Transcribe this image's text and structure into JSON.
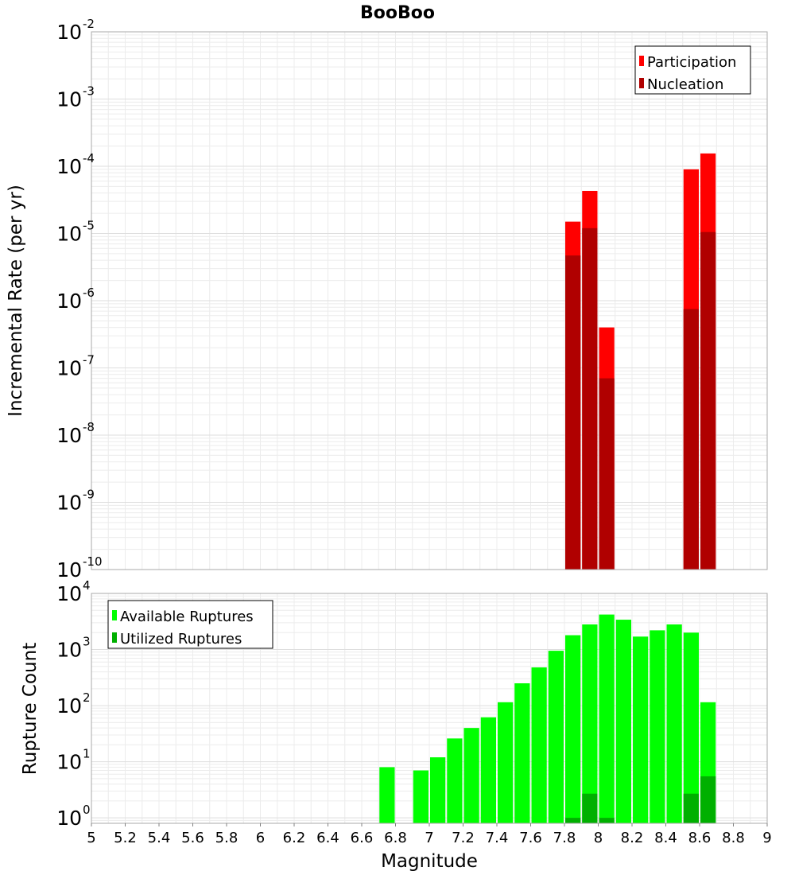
{
  "chart_data": [
    {
      "type": "bar",
      "title": "BooBoo",
      "xlabel": "",
      "ylabel": "Incremental Rate (per yr)",
      "xlim": [
        5,
        9
      ],
      "ylim": [
        1e-10,
        0.01
      ],
      "yscale": "log",
      "y_tick_exponents": [
        "-10",
        "-9",
        "-8",
        "-7",
        "-6",
        "-5",
        "-4",
        "-3",
        "-2"
      ],
      "y_tick_base": "10",
      "bar_width": 0.1,
      "grid": true,
      "legend_position": "top-right",
      "series": [
        {
          "name": "Participation",
          "color": "#ff0000",
          "points": [
            [
              7.85,
              1.5e-05
            ],
            [
              7.95,
              4.3e-05
            ],
            [
              8.05,
              4e-07
            ],
            [
              8.55,
              9e-05
            ],
            [
              8.65,
              0.000155
            ]
          ]
        },
        {
          "name": "Nucleation",
          "color": "#b00000",
          "points": [
            [
              7.85,
              4.7e-06
            ],
            [
              7.95,
              1.2e-05
            ],
            [
              8.05,
              7e-08
            ],
            [
              8.55,
              7.5e-07
            ],
            [
              8.65,
              1.05e-05
            ]
          ]
        }
      ]
    },
    {
      "type": "bar",
      "title": "",
      "xlabel": "Magnitude",
      "ylabel": "Rupture Count",
      "xlim": [
        5,
        9
      ],
      "ylim": [
        0.8,
        10000
      ],
      "yscale": "log",
      "y_tick_exponents": [
        "0",
        "1",
        "2",
        "3",
        "4"
      ],
      "y_tick_base": "10",
      "x_ticks": [
        "5",
        "5.2",
        "5.4",
        "5.6",
        "5.8",
        "6",
        "6.2",
        "6.4",
        "6.6",
        "6.8",
        "7",
        "7.2",
        "7.4",
        "7.6",
        "7.8",
        "8",
        "8.2",
        "8.4",
        "8.6",
        "8.8",
        "9"
      ],
      "bar_width": 0.1,
      "grid": true,
      "legend_position": "top-left",
      "series": [
        {
          "name": "Available Ruptures",
          "color": "#00ff00",
          "points": [
            [
              6.75,
              8
            ],
            [
              6.95,
              7
            ],
            [
              7.05,
              12
            ],
            [
              7.15,
              26
            ],
            [
              7.25,
              40
            ],
            [
              7.35,
              62
            ],
            [
              7.45,
              115
            ],
            [
              7.55,
              250
            ],
            [
              7.65,
              480
            ],
            [
              7.75,
              950
            ],
            [
              7.85,
              1800
            ],
            [
              7.95,
              2800
            ],
            [
              8.05,
              4200
            ],
            [
              8.15,
              3400
            ],
            [
              8.25,
              1700
            ],
            [
              8.35,
              2200
            ],
            [
              8.45,
              2800
            ],
            [
              8.55,
              2000
            ],
            [
              8.65,
              115
            ]
          ]
        },
        {
          "name": "Utilized Ruptures",
          "color": "#00b000",
          "points": [
            [
              7.85,
              1
            ],
            [
              7.95,
              2.7
            ],
            [
              8.05,
              1
            ],
            [
              8.55,
              2.7
            ],
            [
              8.65,
              5.5
            ]
          ]
        }
      ]
    }
  ]
}
